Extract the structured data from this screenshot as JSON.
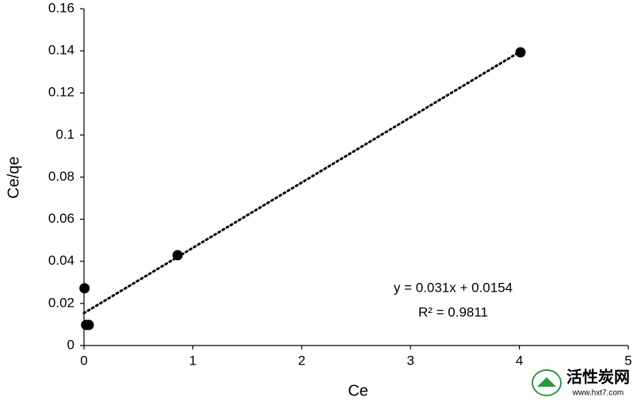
{
  "chart_data": {
    "type": "scatter",
    "x_label": "Ce",
    "y_label": "Ce/qe",
    "series": [
      {
        "name": "Ce/qe",
        "color": "#000000",
        "x": [
          0.005,
          0.02,
          0.044,
          0.86,
          4.01
        ],
        "values": [
          0.0272,
          0.0098,
          0.0098,
          0.0429,
          0.1393
        ]
      }
    ],
    "xlim": [
      0,
      5
    ],
    "xticks": [
      0,
      1,
      2,
      3,
      4,
      5
    ],
    "ylim": [
      0,
      0.16
    ],
    "yticks": [
      0,
      0.02,
      0.04,
      0.06,
      0.08,
      0.1,
      0.12,
      0.14,
      0.16
    ],
    "grid": false,
    "trendline": {
      "slope": 0.031,
      "intercept": 0.0154,
      "color": "#000000",
      "label": "y = 0.031x + 0.0154",
      "r2_label": "R² = 0.9811"
    }
  },
  "watermark": {
    "name": "活性炭网",
    "url": "www.hxt7.com"
  }
}
